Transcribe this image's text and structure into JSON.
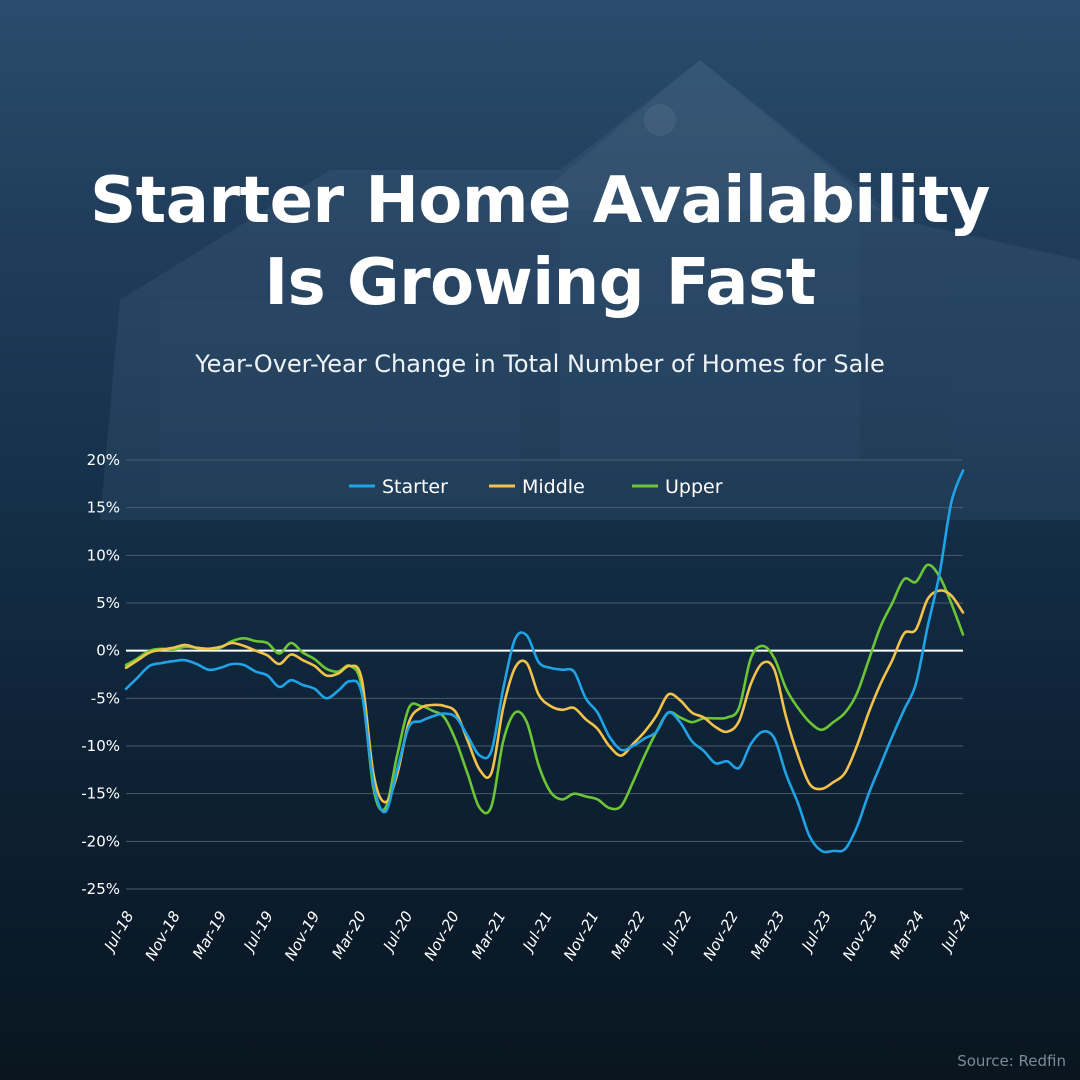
{
  "title_line1": "Starter Home Availability",
  "title_line2": "Is Growing Fast",
  "subtitle": "Year-Over-Year Change in Total Number of Homes for Sale",
  "source": "Source: Redfin",
  "colors": {
    "starter": "#1fa3e6",
    "middle": "#f2c24a",
    "upper": "#6cc534",
    "grid": "#4a5a6a",
    "zero": "#ffffff"
  },
  "chart_data": {
    "type": "line",
    "title": "Starter Home Availability Is Growing Fast",
    "subtitle": "Year-Over-Year Change in Total Number of Homes for Sale",
    "ylim": [
      -25,
      20
    ],
    "yticks": [
      20,
      15,
      10,
      5,
      0,
      -5,
      -10,
      -15,
      -20,
      -25
    ],
    "ytick_labels": [
      "20%",
      "15%",
      "10%",
      "5%",
      "0%",
      "-5%",
      "-10%",
      "-15%",
      "-20%",
      "-25%"
    ],
    "xtick_labels": [
      "Jul-18",
      "Nov-18",
      "Mar-19",
      "Jul-19",
      "Nov-19",
      "Mar-20",
      "Jul-20",
      "Nov-20",
      "Mar-21",
      "Jul-21",
      "Nov-21",
      "Mar-22",
      "Jul-22",
      "Nov-22",
      "Mar-23",
      "Jul-23",
      "Nov-23",
      "Mar-24",
      "Jul-24"
    ],
    "legend_position": "top-center",
    "grid": true,
    "series": [
      {
        "name": "Starter",
        "values": [
          -4.0,
          -2.8,
          -1.6,
          -1.3,
          -1.1,
          -1.0,
          -1.4,
          -2.0,
          -1.8,
          -1.4,
          -1.5,
          -2.2,
          -2.6,
          -3.8,
          -3.1,
          -3.6,
          -4.0,
          -5.0,
          -4.2,
          -3.2,
          -4.5,
          -14.0,
          -16.9,
          -12.5,
          -8.0,
          -7.4,
          -6.9,
          -6.6,
          -7.0,
          -9.0,
          -11.0,
          -10.5,
          -4.0,
          1.2,
          1.6,
          -1.2,
          -1.8,
          -2.0,
          -2.2,
          -5.0,
          -6.5,
          -9.0,
          -10.4,
          -10.0,
          -9.2,
          -8.5,
          -6.5,
          -7.5,
          -9.5,
          -10.5,
          -11.8,
          -11.6,
          -12.3,
          -9.8,
          -8.5,
          -9.2,
          -13.0,
          -16.0,
          -19.5,
          -21.0,
          -21.0,
          -20.8,
          -18.5,
          -15.0,
          -12.0,
          -9.0,
          -6.2,
          -3.5,
          2.5,
          8.0,
          15.5,
          18.9
        ]
      },
      {
        "name": "Middle",
        "values": [
          -1.8,
          -1.0,
          -0.2,
          0.1,
          0.3,
          0.6,
          0.3,
          0.2,
          0.4,
          0.8,
          0.5,
          0.0,
          -0.5,
          -1.4,
          -0.4,
          -1.0,
          -1.6,
          -2.6,
          -2.4,
          -1.6,
          -3.0,
          -13.0,
          -15.9,
          -13.0,
          -7.5,
          -6.0,
          -5.7,
          -5.8,
          -6.5,
          -9.5,
          -12.5,
          -12.8,
          -6.0,
          -1.8,
          -1.3,
          -4.6,
          -5.8,
          -6.2,
          -6.0,
          -7.2,
          -8.2,
          -10.0,
          -11.0,
          -9.8,
          -8.5,
          -6.8,
          -4.6,
          -5.2,
          -6.5,
          -7.0,
          -8.0,
          -8.5,
          -7.4,
          -3.5,
          -1.3,
          -2.0,
          -7.0,
          -11.0,
          -14.0,
          -14.5,
          -13.8,
          -12.8,
          -10.0,
          -6.5,
          -3.5,
          -1.0,
          1.8,
          2.2,
          5.4,
          6.3,
          5.8,
          4.0
        ]
      },
      {
        "name": "Upper",
        "values": [
          -1.5,
          -0.8,
          0.0,
          0.2,
          0.1,
          0.4,
          0.3,
          0.2,
          0.3,
          1.0,
          1.3,
          1.0,
          0.8,
          -0.3,
          0.8,
          -0.2,
          -0.9,
          -1.9,
          -2.2,
          -1.6,
          -3.8,
          -14.5,
          -16.5,
          -11.0,
          -6.0,
          -5.8,
          -6.3,
          -7.0,
          -9.5,
          -13.0,
          -16.5,
          -16.3,
          -9.5,
          -6.5,
          -7.5,
          -12.0,
          -14.8,
          -15.6,
          -15.0,
          -15.3,
          -15.6,
          -16.5,
          -16.3,
          -13.8,
          -11.0,
          -8.5,
          -6.5,
          -7.0,
          -7.5,
          -7.1,
          -7.1,
          -7.0,
          -6.0,
          -0.8,
          0.5,
          -0.8,
          -4.0,
          -6.0,
          -7.5,
          -8.3,
          -7.5,
          -6.5,
          -4.5,
          -1.0,
          2.5,
          5.0,
          7.5,
          7.2,
          9.0,
          7.8,
          5.0,
          1.7
        ]
      }
    ]
  }
}
